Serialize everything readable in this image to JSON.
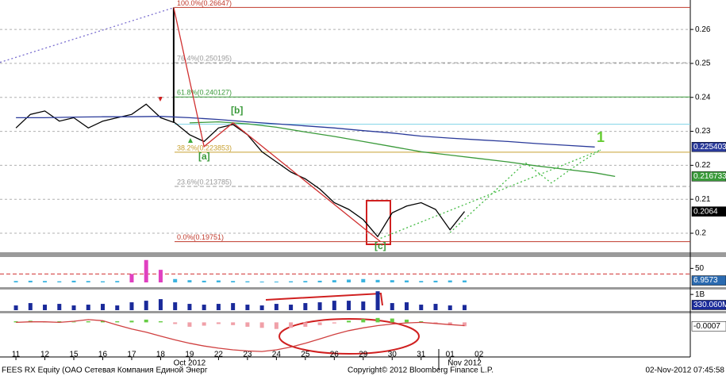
{
  "chart_data": [
    {
      "type": "line",
      "xlim": [
        -0.55,
        23.3
      ],
      "xticks": [
        {
          "value": 0,
          "label": "11"
        },
        {
          "value": 1,
          "label": "12"
        },
        {
          "value": 2,
          "label": "15"
        },
        {
          "value": 3,
          "label": "16"
        },
        {
          "value": 4,
          "label": "17"
        },
        {
          "value": 5,
          "label": "18"
        },
        {
          "value": 6,
          "label": "19"
        },
        {
          "value": 7,
          "label": "22"
        },
        {
          "value": 8,
          "label": "23"
        },
        {
          "value": 9,
          "label": "24"
        },
        {
          "value": 10,
          "label": "25"
        },
        {
          "value": 11,
          "label": "26"
        },
        {
          "value": 12,
          "label": "29"
        },
        {
          "value": 13,
          "label": "30"
        },
        {
          "value": 14,
          "label": "31"
        },
        {
          "value": 15,
          "label": "01"
        },
        {
          "value": 16,
          "label": "02"
        }
      ],
      "x_group_labels": [
        "Oct 2012",
        "Nov 2012"
      ],
      "ylim": [
        0.1944,
        0.2675
      ],
      "yticks": [
        0.2,
        0.21,
        0.22,
        0.23,
        0.24,
        0.25,
        0.26
      ],
      "grid": true,
      "x": [
        0,
        0.5,
        1,
        1.5,
        2,
        2.5,
        3,
        3.5,
        4,
        4.5,
        5,
        5.5,
        6,
        6.5,
        7,
        7.5,
        8,
        8.5,
        9,
        9.5,
        10,
        10.5,
        11,
        11.5,
        12,
        12.5,
        13,
        13.5,
        14,
        14.5,
        15,
        15.5
      ],
      "series": [
        {
          "color": "#000000",
          "values": [
            0.231,
            0.235,
            0.236,
            0.233,
            0.234,
            0.231,
            0.233,
            0.234,
            0.235,
            0.238,
            0.234,
            0.2325,
            0.229,
            0.227,
            0.231,
            0.232,
            0.229,
            0.224,
            0.221,
            0.218,
            0.216,
            0.213,
            0.209,
            0.207,
            0.204,
            0.199,
            0.206,
            0.208,
            0.209,
            0.207,
            0.201,
            0.2064
          ]
        },
        {
          "color": "#000000",
          "x": [
            5.45,
            5.45
          ],
          "values": [
            0.2326,
            0.26647
          ]
        },
        {
          "color": "#2a3a9a",
          "x": [
            0,
            1,
            2,
            3,
            4,
            5,
            6,
            7,
            8,
            9,
            10,
            11,
            12,
            13,
            14,
            15,
            16,
            17,
            18,
            19,
            20
          ],
          "values": [
            0.234,
            0.234,
            0.2342,
            0.2343,
            0.2343,
            0.2344,
            0.234,
            0.2335,
            0.2328,
            0.2322,
            0.2316,
            0.231,
            0.2302,
            0.2295,
            0.2286,
            0.228,
            0.2275,
            0.227,
            0.2264,
            0.2259,
            0.225403
          ]
        },
        {
          "color": "#3a9a3a",
          "x": [
            6,
            7,
            8,
            9,
            10,
            11,
            12,
            13,
            14,
            15,
            16,
            17,
            18,
            19,
            20,
            20.7
          ],
          "values": [
            0.2325,
            0.2328,
            0.2322,
            0.2312,
            0.2298,
            0.2285,
            0.227,
            0.2255,
            0.224,
            0.223,
            0.222,
            0.221,
            0.2198,
            0.2188,
            0.2178,
            0.216733
          ]
        },
        {
          "color": "#d03030",
          "x": [
            5.45,
            6.5,
            7.5,
            12.6
          ],
          "values": [
            0.26647,
            0.2255,
            0.2325,
            0.19751
          ]
        },
        {
          "color": "#7b6fd0",
          "dash": "dotted",
          "x": [
            -0.55,
            5.45
          ],
          "values": [
            0.2503,
            0.2664
          ]
        },
        {
          "color": "#44bb44",
          "dash": "dotted",
          "x": [
            12.6,
            20.2
          ],
          "values": [
            0.1985,
            0.2245
          ]
        },
        {
          "color": "#44bb44",
          "dash": "dotted",
          "x": [
            15,
            17.6,
            18.5,
            19.5,
            20.2
          ],
          "values": [
            0.2002,
            0.2208,
            0.2148,
            0.2208,
            0.2245
          ]
        }
      ],
      "levels": [
        {
          "value": 0.26647,
          "label": "100.0%(0.26647)",
          "color": "#c0392b"
        },
        {
          "value": 0.250195,
          "label": "76.4%(0.250195)",
          "color": "#999999",
          "dash": "dashed"
        },
        {
          "value": 0.240127,
          "label": "61.8%(0.240127)",
          "color": "#3a9a3a"
        },
        {
          "value": 0.223853,
          "label": "38.2%(0.223853)",
          "color": "#c8a030"
        },
        {
          "value": 0.213785,
          "label": "23.6%(0.213785)",
          "color": "#999999",
          "dash": "dashed"
        },
        {
          "value": 0.19751,
          "label": "0.0%(0.19751)",
          "color": "#c0392b"
        }
      ],
      "lines": [
        {
          "value": 0.2321,
          "color": "#7fd3e6"
        }
      ],
      "annotations": [
        {
          "text": "[a]",
          "color": "#3a9a3a"
        },
        {
          "text": "[b]",
          "color": "#3a9a3a"
        },
        {
          "text": "[c]",
          "color": "#3a9a3a"
        },
        {
          "text": "1",
          "color": "#66cc33"
        }
      ],
      "value_boxes": [
        {
          "value": 0.225403,
          "color": "#2a3a9a",
          "text_color": "#ffffff"
        },
        {
          "value": 0.216733,
          "color": "#3a9a3a",
          "text_color": "#ffffff"
        },
        {
          "value": 0.2064,
          "color": "#000000",
          "text_color": "#ffffff"
        }
      ]
    },
    {
      "type": "bar",
      "ylim": [
        0,
        85
      ],
      "yticks": [
        50
      ],
      "x": [
        0,
        0.5,
        1,
        1.5,
        2,
        2.5,
        3,
        3.5,
        4,
        4.5,
        5,
        5.5,
        6,
        6.5,
        7,
        7.5,
        8,
        8.5,
        9,
        9.5,
        10,
        10.5,
        11,
        11.5,
        12,
        12.5,
        13,
        13.5,
        14,
        14.5,
        15,
        15.5
      ],
      "series": [
        {
          "color": "#3cb4e0",
          "values": [
            5,
            6,
            5,
            4,
            6,
            5,
            4,
            5,
            null,
            null,
            null,
            12,
            8,
            6,
            7,
            5,
            4,
            3,
            3,
            4,
            5,
            6,
            8,
            10,
            12,
            9,
            8,
            7,
            5,
            6,
            7,
            6.9573
          ]
        },
        {
          "color": "#e040c0",
          "values": [
            null,
            null,
            null,
            null,
            null,
            null,
            null,
            null,
            30,
            80,
            45,
            null,
            null,
            null,
            null,
            null,
            null,
            null,
            null,
            null,
            null,
            null,
            null,
            null,
            null,
            null,
            null,
            null,
            null,
            null,
            null,
            null
          ]
        }
      ],
      "lines": [
        {
          "value": 30,
          "color": "#d03030",
          "dash": "dashed"
        }
      ],
      "value_boxes": [
        {
          "value": 6.9573,
          "color": "#2a6ab0",
          "text_color": "#ffffff"
        }
      ]
    },
    {
      "type": "bar",
      "ylim": [
        0,
        1260000000
      ],
      "yticks": [
        {
          "value": 1000000000,
          "label": "1B"
        }
      ],
      "x": [
        0,
        0.5,
        1,
        1.5,
        2,
        2.5,
        3,
        3.5,
        4,
        4.5,
        5,
        5.5,
        6,
        6.5,
        7,
        7.5,
        8,
        8.5,
        9,
        9.5,
        10,
        10.5,
        11,
        11.5,
        12,
        12.5,
        13,
        13.5,
        14,
        14.5,
        15,
        15.5
      ],
      "series": [
        {
          "color": "#1a2a9a",
          "values": [
            300000000,
            450000000,
            350000000,
            400000000,
            300000000,
            350000000,
            400000000,
            300000000,
            500000000,
            600000000,
            700000000,
            500000000,
            400000000,
            350000000,
            400000000,
            450000000,
            350000000,
            300000000,
            400000000,
            350000000,
            450000000,
            500000000,
            600000000,
            600000000,
            550000000,
            1200000000,
            450000000,
            500000000,
            350000000,
            400000000,
            300000000,
            330060000
          ]
        }
      ],
      "value_boxes": [
        {
          "value": 330060000,
          "label": "330.060M",
          "color": "#1a2a9a",
          "text_color": "#ffffff"
        }
      ]
    },
    {
      "type": "bar",
      "ylim": [
        -0.0063,
        0.0015
      ],
      "yticks": [],
      "x": [
        0,
        0.5,
        1,
        1.5,
        2,
        2.5,
        3,
        3.5,
        4,
        4.5,
        5,
        5.5,
        6,
        6.5,
        7,
        7.5,
        8,
        8.5,
        9,
        9.5,
        10,
        10.5,
        11,
        11.5,
        12,
        12.5,
        13,
        13.5,
        14,
        14.5,
        15,
        15.5
      ],
      "series": [
        {
          "color": "#66cc44",
          "negative_color": "#f0a0a8",
          "values": [
            0.0002,
            0.0003,
            0.0001,
            0.0002,
            0.0001,
            0.0002,
            0.0003,
            0.0002,
            0.0003,
            0.0005,
            0.0002,
            -0.0003,
            -0.0008,
            -0.0006,
            -0.0003,
            -0.0005,
            -0.0008,
            -0.001,
            -0.0012,
            -0.001,
            -0.0008,
            -0.0005,
            -0.0002,
            0.0003,
            0.0006,
            0.0008,
            0.0007,
            0.0005,
            0.0002,
            -0.0002,
            -0.0005,
            -0.0007
          ]
        },
        {
          "type": "line",
          "color": "#d04040",
          "values": [
            0,
            0.0001,
            0.0001,
            0,
            0.0002,
            0.0005,
            0.0003,
            -0.0005,
            -0.0012,
            -0.0018,
            -0.0025,
            -0.0032,
            -0.0038,
            -0.0043,
            -0.0047,
            -0.005,
            -0.0052,
            -0.0053,
            -0.005,
            -0.0045,
            -0.0038,
            -0.003,
            -0.0022,
            -0.0015,
            -0.001,
            -0.0006,
            -0.0003,
            -0.0001,
            0,
            -0.0002,
            -0.0004,
            -0.0006
          ]
        }
      ],
      "value_boxes": [
        {
          "value": -0.0007,
          "color": "#ffffff",
          "text_color": "#000000"
        }
      ]
    }
  ],
  "footer": {
    "left": "FEES RX Equity (OAO Сетевая Компания Единой Энерг",
    "center": "Copyright© 2012 Bloomberg Finance L.P.",
    "right": "02-Nov-2012 07:45:58"
  }
}
